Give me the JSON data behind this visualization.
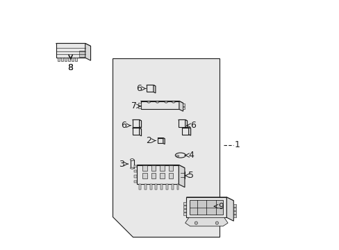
{
  "bg_color": "#ffffff",
  "shaded_panel_color": "#e8e8e8",
  "line_color": "#1a1a1a",
  "label_color": "#1a1a1a",
  "label_fontsize": 9,
  "arrow_color": "#1a1a1a",
  "title": ""
}
